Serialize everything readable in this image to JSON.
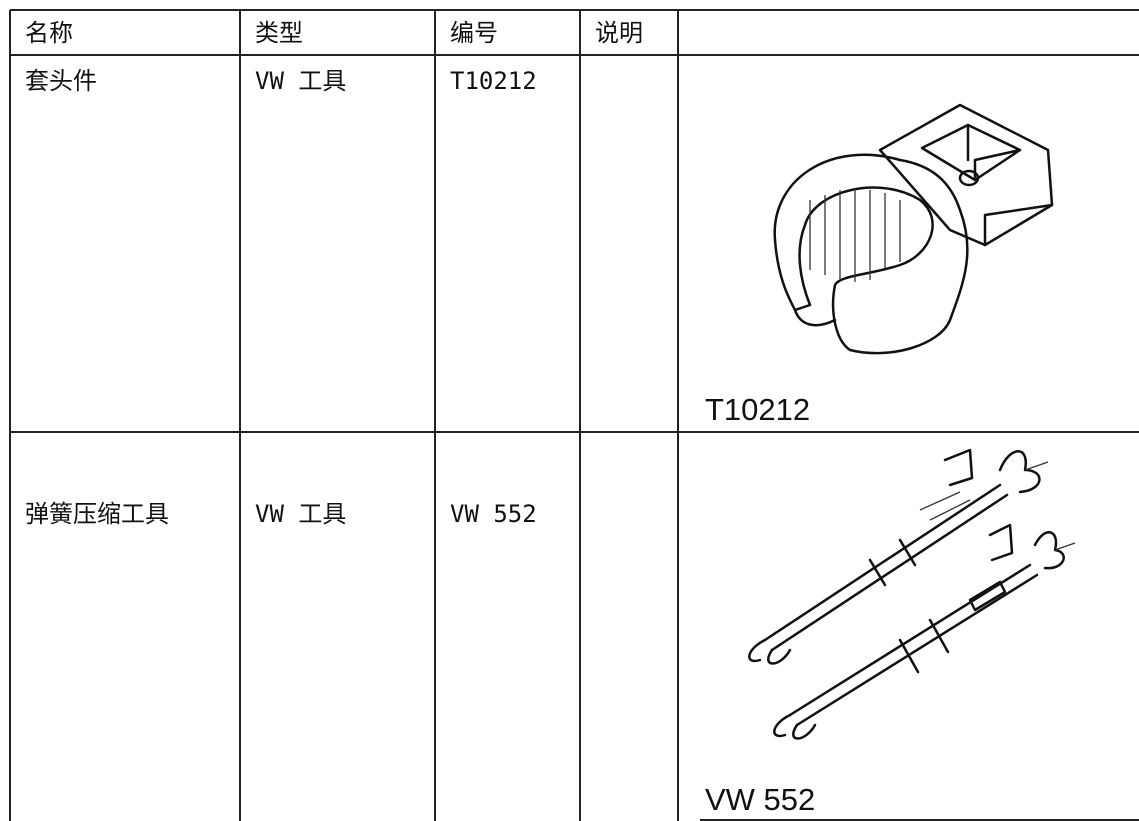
{
  "table": {
    "header": [
      "名称",
      "类型",
      "编号",
      "说明"
    ],
    "rows": [
      {
        "name": "套头件",
        "type": "VW 工具",
        "number": "T10212",
        "image_label": "T10212"
      },
      {
        "name": "弹簧压缩工具",
        "type": "VW 工具",
        "number": "VW 552",
        "image_label": "VW 552"
      }
    ]
  }
}
